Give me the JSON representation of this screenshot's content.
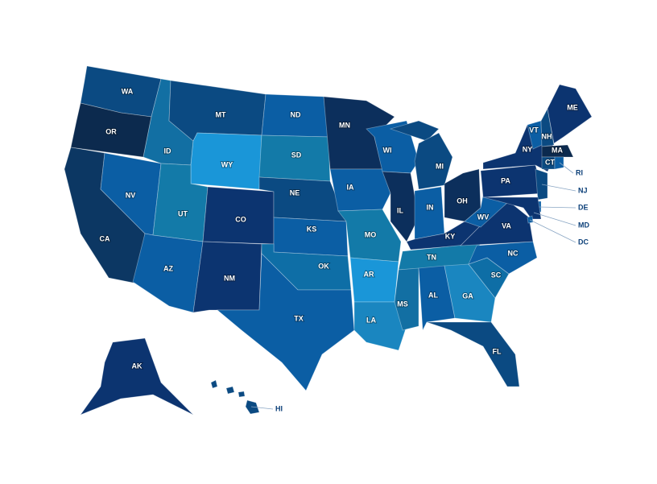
{
  "states": [
    {
      "label": "WA",
      "color": "#0b4a82"
    },
    {
      "label": "OR",
      "color": "#0c2a4e"
    },
    {
      "label": "CA",
      "color": "#0c3763"
    },
    {
      "label": "NV",
      "color": "#0b5ea4"
    },
    {
      "label": "ID",
      "color": "#126fa3"
    },
    {
      "label": "MT",
      "color": "#0b4a82"
    },
    {
      "label": "WY",
      "color": "#1a96d8"
    },
    {
      "label": "UT",
      "color": "#137aa8"
    },
    {
      "label": "AZ",
      "color": "#0b5ea4"
    },
    {
      "label": "CO",
      "color": "#0c3470"
    },
    {
      "label": "NM",
      "color": "#0c3470"
    },
    {
      "label": "ND",
      "color": "#0b5ea4"
    },
    {
      "label": "SD",
      "color": "#137aa8"
    },
    {
      "label": "NE",
      "color": "#0b4a82"
    },
    {
      "label": "KS",
      "color": "#0b5ea4"
    },
    {
      "label": "OK",
      "color": "#0e6ea6"
    },
    {
      "label": "TX",
      "color": "#0b5ea4"
    },
    {
      "label": "MN",
      "color": "#0c2f5c"
    },
    {
      "label": "IA",
      "color": "#0b5ea4"
    },
    {
      "label": "MO",
      "color": "#137aa8"
    },
    {
      "label": "AR",
      "color": "#1a96d8"
    },
    {
      "label": "LA",
      "color": "#1a86c0"
    },
    {
      "label": "WI",
      "color": "#0b5ea4"
    },
    {
      "label": "IL",
      "color": "#0c2f5c"
    },
    {
      "label": "MI",
      "color": "#0b4a82"
    },
    {
      "label": "IN",
      "color": "#0b5ea4"
    },
    {
      "label": "OH",
      "color": "#0c2f5c"
    },
    {
      "label": "KY",
      "color": "#0c3470"
    },
    {
      "label": "TN",
      "color": "#137aa8"
    },
    {
      "label": "MS",
      "color": "#126fa3"
    },
    {
      "label": "AL",
      "color": "#0b5ea4"
    },
    {
      "label": "GA",
      "color": "#1a86c0"
    },
    {
      "label": "FL",
      "color": "#0b4a82"
    },
    {
      "label": "SC",
      "color": "#0e6ea6"
    },
    {
      "label": "NC",
      "color": "#0b5ea4"
    },
    {
      "label": "VA",
      "color": "#0c3470"
    },
    {
      "label": "WV",
      "color": "#0b5ea4"
    },
    {
      "label": "PA",
      "color": "#0c3470"
    },
    {
      "label": "NY",
      "color": "#0c3470"
    },
    {
      "label": "NJ",
      "color": "#0b4a82"
    },
    {
      "label": "DE",
      "color": "#0b5ea4"
    },
    {
      "label": "MD",
      "color": "#0c3470"
    },
    {
      "label": "DC",
      "color": "#0b5ea4"
    },
    {
      "label": "VT",
      "color": "#0b5ea4"
    },
    {
      "label": "NH",
      "color": "#0b4a82"
    },
    {
      "label": "ME",
      "color": "#0c3470"
    },
    {
      "label": "MA",
      "color": "#0c2a4e"
    },
    {
      "label": "CT",
      "color": "#0b4a82"
    },
    {
      "label": "RI",
      "color": "#0b5ea4"
    },
    {
      "label": "AK",
      "color": "#0c3470"
    },
    {
      "label": "HI",
      "color": "#0b4a82"
    }
  ]
}
